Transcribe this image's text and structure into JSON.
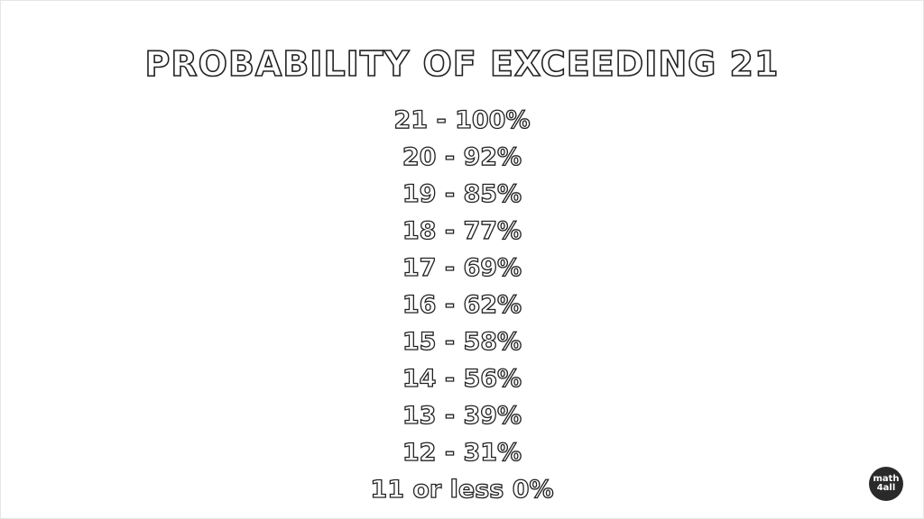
{
  "title": "PROBABILITY OF EXCEEDING 21",
  "lines": [
    "21 - 100%",
    "20 - 92%",
    "19 - 85%",
    "18 - 77%",
    "17 - 69%",
    "16 - 62%",
    "15 - 58%",
    "14 - 56%",
    "13 - 39%",
    "12 - 31%",
    "11 or less 0%"
  ],
  "logo": {
    "lines": [
      "math",
      "4all"
    ]
  }
}
